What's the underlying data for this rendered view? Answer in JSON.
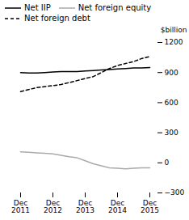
{
  "chart_data": {
    "type": "line",
    "ylabel": "$billion",
    "categories": [
      "Dec\n2011",
      null,
      null,
      null,
      "Dec\n2012",
      null,
      null,
      null,
      "Dec\n2013",
      null,
      null,
      null,
      "Dec\n2014",
      null,
      null,
      null,
      "Dec\n2015"
    ],
    "series": [
      {
        "name": "Net IIP",
        "color": "#000000",
        "line_style": "solid",
        "values": [
          900,
          895,
          895,
          900,
          905,
          910,
          910,
          910,
          915,
          920,
          925,
          930,
          935,
          940,
          945,
          945,
          950
        ]
      },
      {
        "name": "Net foreign equity",
        "color": "#aaaaaa",
        "line_style": "solid",
        "values": [
          110,
          105,
          100,
          95,
          90,
          75,
          60,
          50,
          20,
          -10,
          -30,
          -50,
          -55,
          -60,
          -55,
          -50,
          -50
        ]
      },
      {
        "name": "Net foreign debt",
        "color": "#000000",
        "line_style": "dashed",
        "values": [
          710,
          730,
          750,
          760,
          770,
          780,
          800,
          820,
          840,
          860,
          900,
          940,
          970,
          990,
          1010,
          1040,
          1060
        ]
      }
    ],
    "ylim": [
      -300,
      1200
    ],
    "yticks": [
      {
        "value": -300,
        "label": "−300"
      },
      0,
      300,
      600,
      900,
      1200
    ],
    "legend": "upper left",
    "grid": false
  }
}
